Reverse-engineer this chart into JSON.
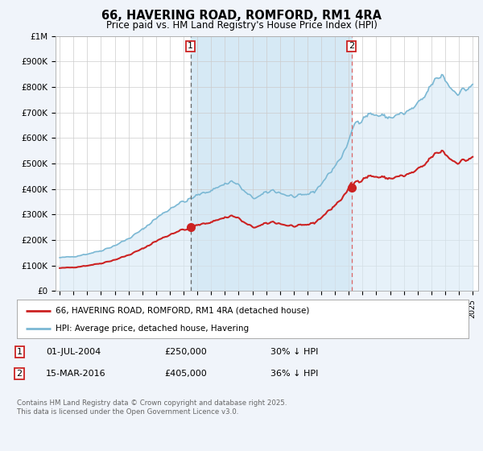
{
  "title": "66, HAVERING ROAD, ROMFORD, RM1 4RA",
  "subtitle": "Price paid vs. HM Land Registry's House Price Index (HPI)",
  "ylim": [
    0,
    1000000
  ],
  "yticks": [
    0,
    100000,
    200000,
    300000,
    400000,
    500000,
    600000,
    700000,
    800000,
    900000,
    1000000
  ],
  "ytick_labels": [
    "£0",
    "£100K",
    "£200K",
    "£300K",
    "£400K",
    "£500K",
    "£600K",
    "£700K",
    "£800K",
    "£900K",
    "£1M"
  ],
  "hpi_color": "#7bb8d4",
  "hpi_fill_color": "#d6e9f5",
  "price_color": "#cc2222",
  "vline1_color": "#555555",
  "vline2_color": "#cc4444",
  "marker_color": "#cc2222",
  "transaction1_date": 2004.5,
  "transaction1_price": 250000,
  "transaction2_date": 2016.2,
  "transaction2_price": 405000,
  "legend_label_price": "66, HAVERING ROAD, ROMFORD, RM1 4RA (detached house)",
  "legend_label_hpi": "HPI: Average price, detached house, Havering",
  "footer": "Contains HM Land Registry data © Crown copyright and database right 2025.\nThis data is licensed under the Open Government Licence v3.0.",
  "background_color": "#f0f4fa",
  "plot_bg_color": "#ffffff",
  "grid_color": "#cccccc",
  "shade_between_vlines": true
}
